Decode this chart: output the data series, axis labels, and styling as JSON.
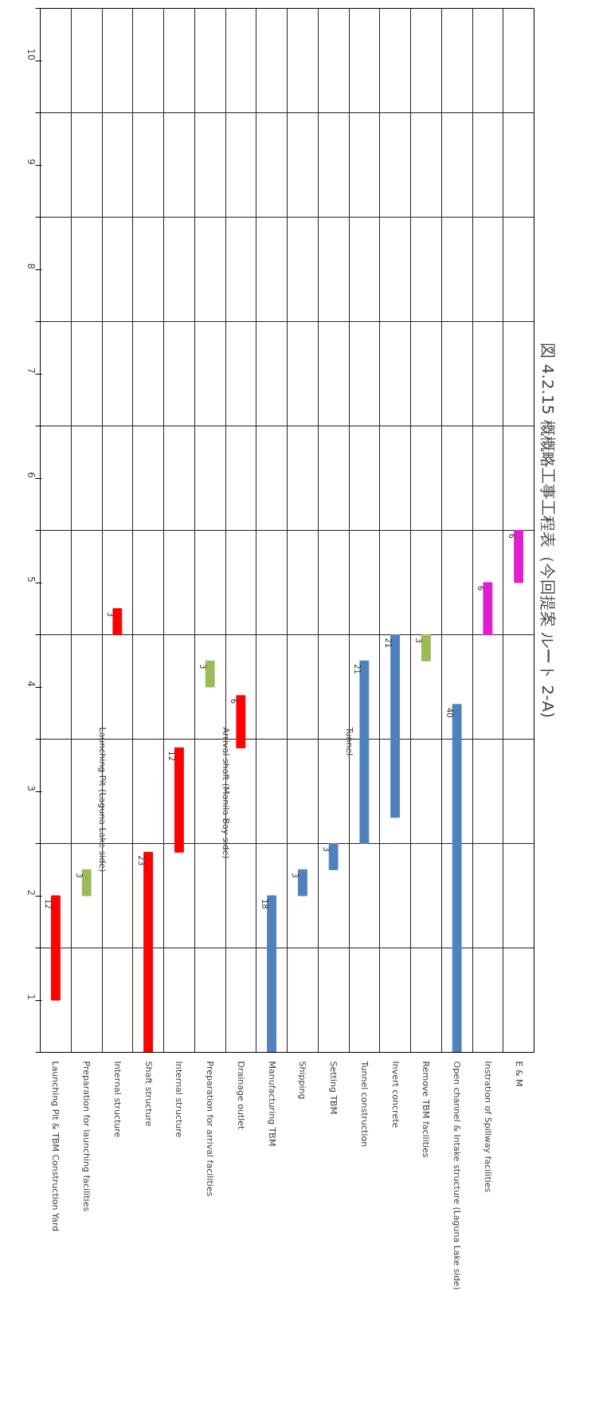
{
  "chart_data": {
    "type": "bar",
    "title": "図 4.2.15 概概略工事工程表（今回提案 ルート 2-A)",
    "categories": [
      "Launching Pit & TBM Construction Yard",
      "Preparation for launching facilities",
      "Internal structure",
      "Shaft structure",
      "Internal structure",
      "Preparation for arrival facilities",
      "Drainage outlet",
      "Manufacturing TBM",
      "Shipping",
      "Setting TBM",
      "Tunnel construction",
      "Invert concrete",
      "Remove TBM facilities",
      "Open channel & Intake structure (Laguna Lake side)",
      "Instration of Spillway facilities",
      "E & M"
    ],
    "base": [
      1.0,
      2.0,
      4.5,
      0.5,
      2.417,
      4.0,
      3.417,
      0.5,
      2.0,
      2.25,
      2.5,
      2.75,
      4.25,
      0.5,
      4.5,
      5.0
    ],
    "values": [
      1.0,
      0.25,
      0.25,
      1.917,
      1.0,
      0.25,
      0.5,
      1.5,
      0.25,
      0.25,
      1.75,
      1.75,
      0.25,
      3.333,
      0.5,
      0.5
    ],
    "colors": [
      "#ff0000",
      "#9bbb59",
      "#ff0000",
      "#ff0000",
      "#ff0000",
      "#9bbb59",
      "#ff0000",
      "#4f81bd",
      "#4f81bd",
      "#4f81bd",
      "#4f81bd",
      "#4f81bd",
      "#9bbb59",
      "#4f81bd",
      "#e020d0",
      "#e020d0"
    ],
    "ylim": [
      0.5,
      10.5
    ],
    "yticks": [
      {
        "value": 0.5,
        "label": null
      },
      1,
      {
        "value": 1.5,
        "label": null
      },
      2,
      {
        "value": 2.5,
        "label": null
      },
      3,
      {
        "value": 3.5,
        "label": null
      },
      4,
      {
        "value": 4.5,
        "label": null
      },
      5,
      {
        "value": 5.5,
        "label": null
      },
      6,
      {
        "value": 6.5,
        "label": null
      },
      7,
      {
        "value": 7.5,
        "label": null
      },
      8,
      {
        "value": 8.5,
        "label": null
      },
      9,
      {
        "value": 9.5,
        "label": null
      },
      10,
      {
        "value": 10.5,
        "label": null
      }
    ],
    "grid": true,
    "annotations": [
      "Launching Pit (Laguna Lake side)",
      "Arrival shaft (Manila Bay side)",
      "Tunnel",
      {
        "text": "12",
        "x": "Launching Pit & TBM Construction Yard",
        "y": 2.0
      },
      {
        "text": "3",
        "x": "Preparation for launching facilities",
        "y": 2.25
      },
      {
        "text": "3",
        "x": "Internal structure",
        "y": 4.75
      },
      {
        "text": "23",
        "x": "Shaft structure",
        "y": 2.417
      },
      "12",
      {
        "text": "3",
        "x": "Preparation for arrival facilities",
        "y": 4.25
      },
      {
        "text": "6",
        "x": "Drainage outlet",
        "y": 3.917
      },
      {
        "text": "18",
        "x": "Manufacturing TBM",
        "y": 2.0
      },
      {
        "text": "3",
        "x": "Shipping",
        "y": 2.25
      },
      {
        "text": "3",
        "x": "Setting TBM",
        "y": 2.5
      },
      {
        "text": "21",
        "x": "Tunnel construction",
        "y": 4.25
      },
      {
        "text": "21",
        "x": "Invert concrete",
        "y": 4.5
      },
      {
        "text": "3",
        "x": "Remove TBM facilities",
        "y": 4.5
      },
      {
        "text": "40",
        "x": "Open channel & Intake structure (Laguna Lake side)",
        "y": 3.833
      },
      {
        "text": "6",
        "x": "Instration of Spillway facilities",
        "y": 5.0
      },
      {
        "text": "6",
        "x": "E & M",
        "y": 5.5
      }
    ]
  }
}
